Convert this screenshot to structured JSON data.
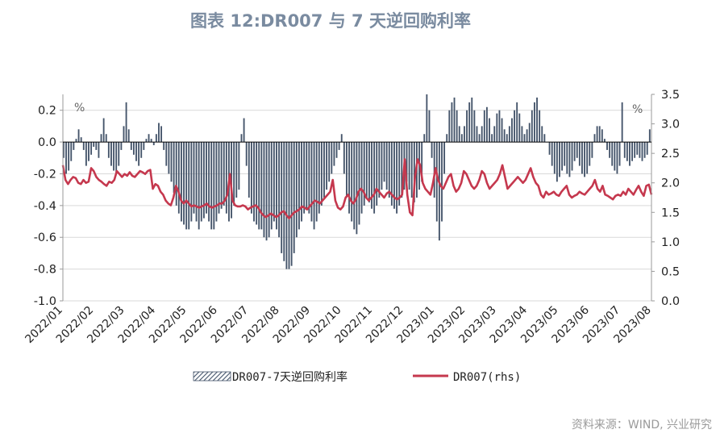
{
  "colors": {
    "title": "#7a8ba0",
    "bar": "#44546a",
    "line": "#c5384e",
    "grid": "#d9d9d9",
    "axis": "#9a9a9a",
    "source": "#9a9a9a"
  },
  "title": "图表 12:DR007 与 7 天逆回购利率",
  "source": "资料来源：WIND, 兴业研究",
  "chart_data": {
    "type": "bar+line",
    "title": "图表 12:DR007 与 7 天逆回购利率",
    "x_labels": [
      "2022/01",
      "2022/02",
      "2022/03",
      "2022/04",
      "2022/05",
      "2022/06",
      "2022/07",
      "2022/08",
      "2022/09",
      "2022/10",
      "2022/11",
      "2022/12",
      "2023/01",
      "2023/02",
      "2023/03",
      "2023/04",
      "2023/05",
      "2023/06",
      "2023/07",
      "2023/08"
    ],
    "left_axis": {
      "unit": "%",
      "ylim": [
        -1.0,
        0.3
      ],
      "ticks": [
        -1.0,
        -0.8,
        -0.6,
        -0.4,
        -0.2,
        0.0,
        0.2
      ]
    },
    "right_axis": {
      "unit": "%",
      "ylim": [
        0.0,
        3.5
      ],
      "ticks": [
        0.0,
        0.5,
        1.0,
        1.5,
        2.0,
        2.5,
        3.0,
        3.5
      ]
    },
    "grid": "horizontal",
    "legend_position": "bottom",
    "series": [
      {
        "name": "DR007-7天逆回购利率",
        "type": "bar",
        "axis": "left",
        "values": [
          -0.1,
          -0.2,
          -0.18,
          -0.12,
          -0.05,
          0.02,
          0.08,
          0.03,
          -0.05,
          -0.15,
          -0.12,
          -0.08,
          -0.03,
          -0.05,
          -0.1,
          0.05,
          0.15,
          0.05,
          -0.1,
          -0.15,
          -0.18,
          -0.2,
          -0.15,
          -0.05,
          0.1,
          0.25,
          0.08,
          -0.05,
          -0.08,
          -0.12,
          -0.15,
          -0.1,
          -0.05,
          0.02,
          0.05,
          0.02,
          -0.02,
          0.05,
          0.12,
          0.1,
          -0.05,
          -0.15,
          -0.2,
          -0.25,
          -0.32,
          -0.4,
          -0.45,
          -0.5,
          -0.52,
          -0.55,
          -0.55,
          -0.5,
          -0.45,
          -0.5,
          -0.55,
          -0.5,
          -0.48,
          -0.45,
          -0.5,
          -0.55,
          -0.55,
          -0.5,
          -0.45,
          -0.42,
          -0.4,
          -0.45,
          -0.5,
          -0.48,
          -0.4,
          -0.35,
          -0.3,
          0.05,
          0.15,
          -0.15,
          -0.35,
          -0.45,
          -0.5,
          -0.52,
          -0.55,
          -0.55,
          -0.6,
          -0.62,
          -0.6,
          -0.55,
          -0.5,
          -0.55,
          -0.6,
          -0.7,
          -0.75,
          -0.8,
          -0.8,
          -0.78,
          -0.7,
          -0.6,
          -0.55,
          -0.5,
          -0.45,
          -0.42,
          -0.45,
          -0.5,
          -0.55,
          -0.5,
          -0.45,
          -0.4,
          -0.35,
          -0.3,
          -0.25,
          -0.2,
          -0.15,
          -0.1,
          -0.05,
          0.05,
          -0.2,
          -0.35,
          -0.45,
          -0.5,
          -0.55,
          -0.58,
          -0.52,
          -0.45,
          -0.4,
          -0.35,
          -0.38,
          -0.42,
          -0.45,
          -0.4,
          -0.35,
          -0.3,
          -0.25,
          -0.3,
          -0.35,
          -0.4,
          -0.42,
          -0.45,
          -0.4,
          -0.35,
          -0.3,
          -0.25,
          -0.3,
          -0.35,
          -0.38,
          -0.35,
          -0.3,
          -0.25,
          0.05,
          0.3,
          0.2,
          -0.1,
          -0.35,
          -0.5,
          -0.62,
          -0.5,
          -0.2,
          0.05,
          0.2,
          0.25,
          0.28,
          0.2,
          0.1,
          0.05,
          0.1,
          0.2,
          0.25,
          0.28,
          0.2,
          0.1,
          0.05,
          0.1,
          0.2,
          0.22,
          0.15,
          0.05,
          0.1,
          0.18,
          0.2,
          0.15,
          0.08,
          0.05,
          0.1,
          0.15,
          0.2,
          0.25,
          0.18,
          0.1,
          0.05,
          0.08,
          0.12,
          0.2,
          0.25,
          0.28,
          0.2,
          0.1,
          0.05,
          0.0,
          -0.08,
          -0.15,
          -0.2,
          -0.25,
          -0.22,
          -0.18,
          -0.15,
          -0.2,
          -0.22,
          -0.18,
          -0.12,
          -0.1,
          -0.15,
          -0.2,
          -0.22,
          -0.2,
          -0.15,
          -0.1,
          0.05,
          0.1,
          0.1,
          0.08,
          0.02,
          -0.05,
          -0.1,
          -0.15,
          -0.18,
          -0.2,
          -0.15,
          0.25,
          -0.1,
          -0.12,
          -0.15,
          -0.12,
          -0.1,
          -0.08,
          -0.1,
          -0.12,
          -0.1,
          -0.08,
          0.08
        ],
        "color": "#44546a"
      },
      {
        "name": "DR007(rhs)",
        "type": "line",
        "axis": "right",
        "values": [
          2.3,
          2.05,
          1.98,
          2.05,
          2.1,
          2.08,
          2.0,
          1.98,
          2.05,
          2.0,
          2.02,
          2.25,
          2.2,
          2.1,
          2.05,
          2.02,
          1.98,
          1.95,
          2.02,
          2.0,
          2.05,
          2.2,
          2.15,
          2.1,
          2.15,
          2.12,
          2.18,
          2.12,
          2.1,
          2.15,
          2.2,
          2.18,
          2.15,
          2.2,
          2.22,
          1.9,
          1.98,
          1.95,
          1.85,
          1.8,
          1.7,
          1.65,
          1.62,
          1.75,
          1.95,
          1.85,
          1.7,
          1.65,
          1.7,
          1.65,
          1.6,
          1.62,
          1.6,
          1.58,
          1.6,
          1.62,
          1.65,
          1.6,
          1.58,
          1.6,
          1.62,
          1.65,
          1.65,
          1.7,
          1.8,
          2.15,
          1.7,
          1.62,
          1.6,
          1.6,
          1.62,
          1.6,
          1.55,
          1.58,
          1.6,
          1.62,
          1.58,
          1.5,
          1.45,
          1.42,
          1.45,
          1.48,
          1.45,
          1.42,
          1.45,
          1.5,
          1.52,
          1.45,
          1.4,
          1.45,
          1.5,
          1.52,
          1.55,
          1.6,
          1.58,
          1.55,
          1.6,
          1.65,
          1.7,
          1.68,
          1.65,
          1.7,
          1.75,
          1.8,
          1.85,
          2.05,
          1.7,
          1.58,
          1.55,
          1.6,
          1.75,
          1.8,
          1.7,
          1.65,
          1.72,
          1.85,
          1.9,
          1.85,
          1.75,
          1.7,
          1.75,
          1.8,
          1.9,
          1.85,
          1.8,
          1.75,
          1.82,
          1.85,
          1.8,
          1.75,
          1.72,
          1.75,
          1.8,
          2.4,
          1.8,
          1.5,
          1.45,
          2.1,
          2.4,
          2.3,
          2.0,
          1.9,
          1.85,
          1.8,
          2.0,
          2.25,
          2.05,
          1.95,
          1.9,
          2.0,
          2.1,
          2.15,
          1.95,
          1.85,
          1.9,
          2.0,
          2.2,
          2.15,
          2.05,
          1.95,
          1.9,
          1.95,
          2.05,
          2.2,
          2.15,
          2.0,
          1.9,
          1.95,
          2.0,
          2.05,
          2.15,
          2.3,
          2.1,
          1.9,
          1.95,
          2.0,
          2.05,
          2.1,
          2.05,
          2.0,
          2.05,
          2.15,
          2.25,
          2.1,
          2.0,
          1.95,
          1.8,
          1.75,
          1.85,
          1.8,
          1.82,
          1.85,
          1.8,
          1.78,
          1.85,
          1.9,
          1.95,
          1.8,
          1.75,
          1.78,
          1.8,
          1.85,
          1.82,
          1.8,
          1.85,
          1.9,
          1.95,
          2.05,
          1.9,
          1.85,
          1.95,
          1.8,
          1.78,
          1.75,
          1.72,
          1.78,
          1.8,
          1.78,
          1.85,
          1.8,
          1.9,
          1.85,
          1.8,
          1.88,
          1.95,
          1.85,
          1.78,
          1.95,
          1.97,
          1.8
        ],
        "color": "#c5384e"
      }
    ]
  }
}
